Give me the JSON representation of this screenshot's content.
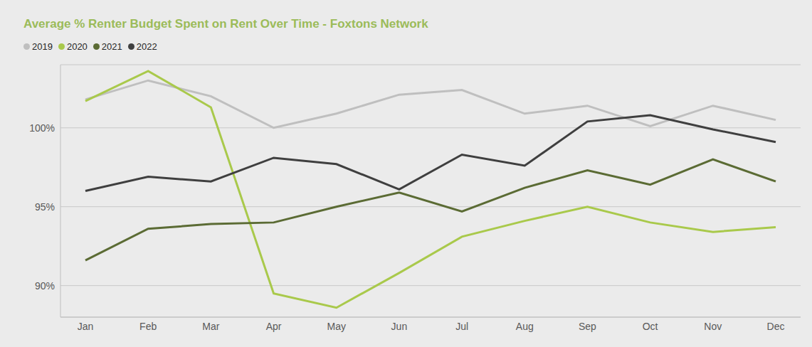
{
  "chart_data": {
    "type": "line",
    "title": "Average % Renter Budget Spent on Rent Over Time - Foxtons Network",
    "categories": [
      "Jan",
      "Feb",
      "Mar",
      "Apr",
      "May",
      "Jun",
      "Jul",
      "Aug",
      "Sep",
      "Oct",
      "Nov",
      "Dec"
    ],
    "series": [
      {
        "name": "2019",
        "color": "#bfbfbf",
        "values": [
          101.8,
          103.0,
          102.0,
          100.0,
          100.9,
          102.1,
          102.4,
          100.9,
          101.4,
          100.1,
          101.4,
          100.5
        ]
      },
      {
        "name": "2020",
        "color": "#a9c94b",
        "values": [
          101.7,
          103.6,
          101.3,
          89.5,
          88.6,
          90.8,
          93.1,
          94.1,
          95.0,
          94.0,
          93.4,
          93.7
        ]
      },
      {
        "name": "2021",
        "color": "#5b6b34",
        "values": [
          91.6,
          93.6,
          93.9,
          94.0,
          95.0,
          95.9,
          94.7,
          96.2,
          97.3,
          96.4,
          98.0,
          96.6
        ]
      },
      {
        "name": "2022",
        "color": "#3f3f3f",
        "values": [
          96.0,
          96.9,
          96.6,
          98.1,
          97.7,
          96.1,
          98.3,
          97.6,
          100.4,
          100.8,
          99.9,
          99.1
        ]
      }
    ],
    "ylim": [
      88,
      104
    ],
    "yticks": [
      {
        "value": 90,
        "label": "90%"
      },
      {
        "value": 95,
        "label": "95%"
      },
      {
        "value": 100,
        "label": "100%"
      }
    ],
    "grid": true,
    "legend": "top-left"
  }
}
